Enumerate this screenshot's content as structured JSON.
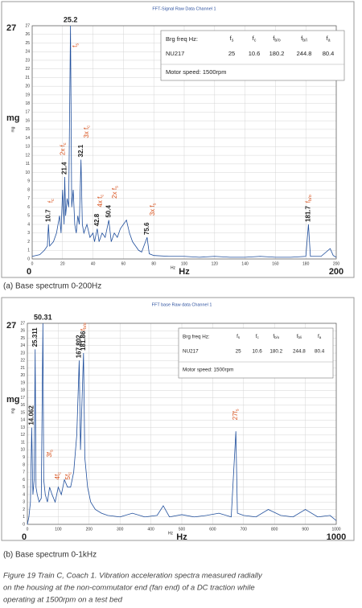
{
  "chart_data": [
    {
      "type": "line",
      "title": "FFT-Signal Raw Data Channel 1",
      "xlabel": "Hz",
      "ylabel": "mg",
      "color": "#1f4e9c",
      "grid": true,
      "xlim": [
        0,
        200
      ],
      "ylim": [
        0,
        27
      ],
      "xticks": [
        0,
        20,
        40,
        60,
        80,
        100,
        120,
        140,
        160,
        180,
        200
      ],
      "yticks": [
        0,
        1,
        2,
        3,
        4,
        5,
        6,
        7,
        8,
        9,
        10,
        11,
        12,
        13,
        14,
        15,
        16,
        17,
        18,
        19,
        20,
        21,
        22,
        23,
        24,
        25,
        26,
        27
      ],
      "x": [
        0,
        5,
        8,
        10,
        10.7,
        11.5,
        14,
        16,
        18,
        19,
        20,
        21,
        21.4,
        22,
        23,
        24,
        25.2,
        26,
        27,
        28,
        29,
        30,
        31,
        32.1,
        33,
        34,
        36,
        38,
        40,
        41,
        42.8,
        44,
        46,
        48,
        50.4,
        52,
        54,
        56,
        58,
        60,
        62,
        64,
        66,
        68,
        70,
        72,
        75.6,
        77,
        80,
        90,
        100,
        110,
        120,
        130,
        140,
        150,
        160,
        170,
        180,
        181.7,
        183,
        190,
        196,
        198,
        200
      ],
      "values": [
        0.3,
        0.5,
        1,
        1.5,
        4,
        1.5,
        2,
        3,
        5,
        3,
        8,
        4,
        9.5,
        5,
        7,
        6,
        27,
        6,
        8,
        4,
        3,
        5,
        4,
        11.5,
        4,
        3,
        4,
        2.5,
        3,
        2,
        3.5,
        2,
        3,
        2.5,
        4.5,
        2,
        3,
        2.5,
        3.5,
        4,
        4.5,
        3,
        2,
        1.5,
        1,
        0.8,
        2.5,
        0.6,
        0.4,
        0.3,
        0.3,
        0.2,
        0.3,
        0.2,
        0.2,
        0.3,
        0.2,
        0.2,
        0.3,
        4,
        0.3,
        0.3,
        1.2,
        0.4,
        0.2
      ],
      "peak_labels": [
        {
          "x": 10.7,
          "y": 4,
          "label": "10.7"
        },
        {
          "x": 21.4,
          "y": 9.5,
          "label": "21.4"
        },
        {
          "x": 25.2,
          "y": 27,
          "label": "25.2"
        },
        {
          "x": 32.1,
          "y": 11.5,
          "label": "32.1"
        },
        {
          "x": 42.8,
          "y": 3.5,
          "label": "42.8"
        },
        {
          "x": 50.4,
          "y": 4.5,
          "label": "50.4"
        },
        {
          "x": 75.6,
          "y": 2.5,
          "label": "75.6"
        },
        {
          "x": 181.7,
          "y": 4,
          "label": "181.7"
        }
      ],
      "tags": [
        {
          "x": 12.5,
          "y": 6.5,
          "text": "f",
          "sub": "c"
        },
        {
          "x": 20.5,
          "y": 12,
          "text": "2x f",
          "sub": "c"
        },
        {
          "x": 28.5,
          "y": 24.5,
          "text": "f",
          "sub": "s"
        },
        {
          "x": 36,
          "y": 14,
          "text": "3x f",
          "sub": "c"
        },
        {
          "x": 45,
          "y": 6,
          "text": "4x f",
          "sub": "c"
        },
        {
          "x": 54.5,
          "y": 7,
          "text": "2x f",
          "sub": "s"
        },
        {
          "x": 79.5,
          "y": 5,
          "text": "3x f",
          "sub": "s"
        },
        {
          "x": 181.7,
          "y": 6.5,
          "text": "f",
          "sub": "b/o"
        }
      ],
      "info_table": {
        "label": "Brg freq Hz:",
        "columns": [
          {
            "text": "f",
            "sub": "s"
          },
          {
            "text": "f",
            "sub": "c"
          },
          {
            "text": "f",
            "sub": "b/o"
          },
          {
            "text": "f",
            "sub": "b/i"
          },
          {
            "text": "f",
            "sub": "a"
          }
        ],
        "bearing": "NU217",
        "values": [
          25,
          10.6,
          180.2,
          244.8,
          80.4
        ],
        "note": "Motor speed: 1500rpm"
      }
    },
    {
      "type": "line",
      "title": "FFT base Raw data Channel 1",
      "xlabel": "Hz",
      "ylabel": "mg",
      "color": "#1f4e9c",
      "grid": true,
      "xlim": [
        0,
        1000
      ],
      "ylim": [
        0,
        27
      ],
      "xticks": [
        0,
        100,
        200,
        300,
        400,
        500,
        600,
        700,
        800,
        900,
        1000
      ],
      "yticks": [
        0,
        1,
        2,
        3,
        4,
        5,
        6,
        7,
        8,
        9,
        10,
        11,
        12,
        13,
        14,
        15,
        16,
        17,
        18,
        19,
        20,
        21,
        22,
        23,
        24,
        25,
        26,
        27
      ],
      "x": [
        0,
        5,
        10,
        14.062,
        18,
        22,
        25.311,
        28,
        32,
        38,
        45,
        50.31,
        53,
        58,
        65,
        72,
        80,
        90,
        100,
        110,
        120,
        130,
        140,
        150,
        160,
        167.802,
        172,
        181.86,
        186,
        195,
        205,
        220,
        240,
        260,
        300,
        340,
        380,
        420,
        440,
        460,
        500,
        540,
        580,
        620,
        660,
        675,
        680,
        700,
        740,
        780,
        820,
        860,
        900,
        940,
        980,
        1000
      ],
      "values": [
        0,
        1,
        3,
        13,
        4,
        6,
        23.5,
        5,
        4,
        3,
        3.5,
        27,
        6,
        4,
        3,
        5,
        4,
        3,
        5,
        4,
        6,
        5,
        5,
        7,
        12,
        22,
        10,
        23,
        9,
        5,
        3,
        2,
        1.5,
        1.2,
        1,
        1.5,
        1,
        1.2,
        2.5,
        1,
        1.3,
        1,
        1.2,
        1.5,
        1,
        12.5,
        1.5,
        1.2,
        1,
        2,
        1.2,
        1,
        2,
        1,
        1.2,
        0.5
      ],
      "peak_labels": [
        {
          "x": 14.062,
          "y": 13,
          "label": "14.062"
        },
        {
          "x": 25.311,
          "y": 23.5,
          "label": "25.311"
        },
        {
          "x": 50.31,
          "y": 27,
          "label": "50.31"
        },
        {
          "x": 167.802,
          "y": 22,
          "label": "167.802"
        },
        {
          "x": 181.86,
          "y": 23,
          "label": "181.86"
        }
      ],
      "tags": [
        {
          "x": 73,
          "y": 9,
          "text": "3f",
          "sub": "s"
        },
        {
          "x": 99,
          "y": 6,
          "text": "4f",
          "sub": "c"
        },
        {
          "x": 133,
          "y": 6,
          "text": "5f",
          "sub": "c"
        },
        {
          "x": 181.86,
          "y": 26,
          "text": "f",
          "sub": "b/o"
        },
        {
          "x": 675,
          "y": 14,
          "text": "27f",
          "sub": "s"
        }
      ],
      "info_table": {
        "label": "Brg freq Hz:",
        "columns": [
          {
            "text": "f",
            "sub": "s"
          },
          {
            "text": "f",
            "sub": "c"
          },
          {
            "text": "f",
            "sub": "b/o"
          },
          {
            "text": "f",
            "sub": "b/i"
          },
          {
            "text": "f",
            "sub": "a"
          }
        ],
        "bearing": "NU217",
        "values": [
          25,
          10.6,
          180.2,
          244.8,
          80.4
        ],
        "note": "Motor speed: 1500rpm"
      }
    }
  ],
  "captions": [
    "(a)  Base spectrum 0-200Hz",
    "(b)  Base spectrum 0-1kHz"
  ],
  "figure_caption": [
    "Figure 19  Train C, Coach 1. Vibration acceleration spectra measured radially",
    "on the housing at the non-commutator end (fan end) of a DC traction while",
    "operating at  1500rpm on a test bed"
  ]
}
